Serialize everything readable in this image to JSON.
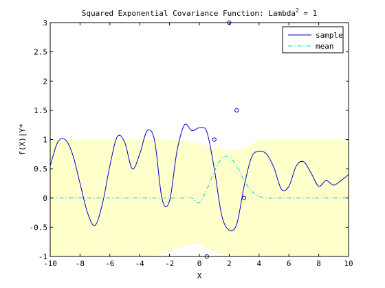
{
  "chart_data": {
    "type": "line",
    "title": "Squared Exponential Covariance Function: Lambda",
    "title_superscript": "2",
    "title_suffix": " = 1",
    "xlabel": "X",
    "ylabel": "f(X)|Y*",
    "xlim": [
      -10,
      10
    ],
    "ylim": [
      -1,
      3
    ],
    "xticks": [
      -10,
      -8,
      -6,
      -4,
      -2,
      0,
      2,
      4,
      6,
      8,
      10
    ],
    "yticks": [
      -1,
      -0.5,
      0,
      0.5,
      1,
      1.5,
      2,
      2.5,
      3
    ],
    "ytick_labels": [
      "-1",
      "-0.5",
      "0",
      "0.5",
      "1",
      "1.5",
      "2",
      "2.5",
      "3"
    ],
    "grid": false,
    "legend_placement": "top-right",
    "legend": [
      "sample",
      "mean"
    ],
    "colors": {
      "sample": "#0000cc",
      "mean": "#00cccc",
      "band": "#ffffcc",
      "points": "#0000cc"
    },
    "x": [
      -10,
      -9.5,
      -9,
      -8.5,
      -8,
      -7.5,
      -7,
      -6.5,
      -6,
      -5.5,
      -5,
      -4.5,
      -4,
      -3.5,
      -3,
      -2.5,
      -2,
      -1.5,
      -1,
      -0.5,
      0,
      0.5,
      1,
      1.5,
      2,
      2.5,
      3,
      3.5,
      4,
      4.5,
      5,
      5.5,
      6,
      6.5,
      7,
      7.5,
      8,
      8.5,
      9,
      9.5,
      10
    ],
    "series": [
      {
        "name": "sample",
        "values": [
          0.55,
          0.95,
          1.0,
          0.75,
          0.25,
          -0.25,
          -0.47,
          -0.1,
          0.55,
          1.05,
          0.95,
          0.5,
          0.75,
          1.15,
          0.98,
          -0.02,
          -0.05,
          0.8,
          1.25,
          1.15,
          1.2,
          1.13,
          0.5,
          -0.3,
          -0.55,
          -0.45,
          0.2,
          0.7,
          0.8,
          0.75,
          0.52,
          0.15,
          0.2,
          0.55,
          0.62,
          0.42,
          0.2,
          0.3,
          0.22,
          0.3,
          0.4
        ]
      },
      {
        "name": "mean",
        "values": [
          0,
          0,
          0,
          0,
          0,
          0,
          0,
          0,
          0,
          0,
          0,
          0,
          0,
          0,
          0,
          0,
          0,
          0,
          0,
          0,
          -0.08,
          0.15,
          0.45,
          0.68,
          0.7,
          0.55,
          0.3,
          0.12,
          0.03,
          0,
          0,
          0,
          0,
          0,
          0,
          0,
          0,
          0,
          0,
          0,
          0
        ]
      }
    ],
    "band": {
      "x": [
        -10,
        -9,
        -8,
        -7,
        -6,
        -5,
        -4,
        -3,
        -2,
        -1,
        0,
        0.5,
        1,
        1.5,
        2,
        2.5,
        3,
        3.5,
        4,
        5,
        6,
        7,
        8,
        9,
        10
      ],
      "upper": [
        1,
        1,
        1,
        1,
        1,
        1,
        1,
        1,
        1,
        0.98,
        0.93,
        0.88,
        0.86,
        0.84,
        0.83,
        0.82,
        0.84,
        0.92,
        1,
        1,
        1,
        1,
        1,
        1,
        1
      ],
      "lower": [
        -1,
        -1,
        -1,
        -1,
        -1,
        -1,
        -1,
        -1,
        -0.92,
        -0.82,
        -0.78,
        -0.86,
        -0.93,
        -0.97,
        -0.98,
        -0.98,
        -1,
        -1,
        -1,
        -1,
        -1,
        -1,
        -1,
        -1,
        -1
      ]
    },
    "observations": {
      "x": [
        0.5,
        1,
        2,
        2.5,
        3
      ],
      "y": [
        -1,
        1,
        3,
        1.5,
        0
      ]
    }
  }
}
